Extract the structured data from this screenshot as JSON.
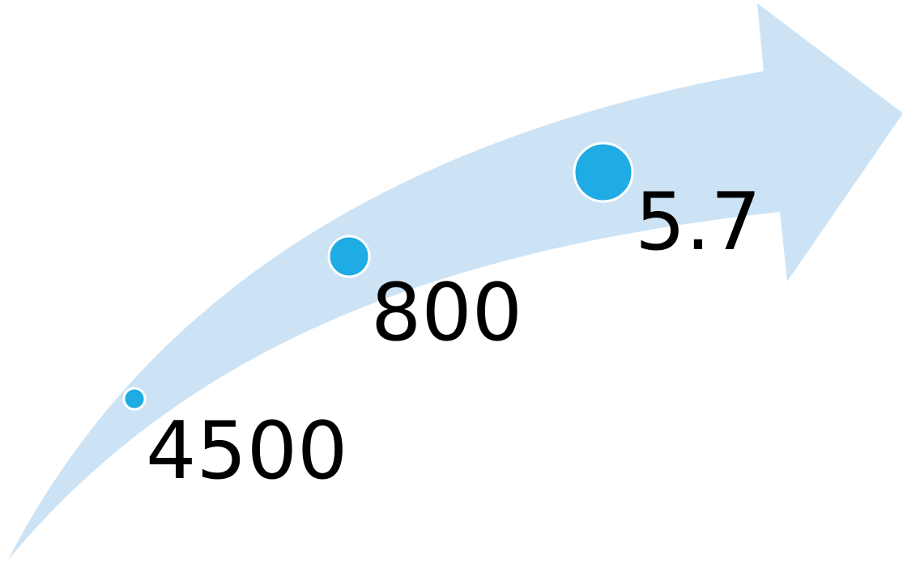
{
  "diagram": {
    "arrow_color": "#cce3f5",
    "dot_color": "#1fabe3",
    "dot_outline_color": "#ffffff",
    "label_color": "#000000",
    "milestones": [
      {
        "label": "4500"
      },
      {
        "label": "800"
      },
      {
        "label": "5.7"
      }
    ]
  }
}
